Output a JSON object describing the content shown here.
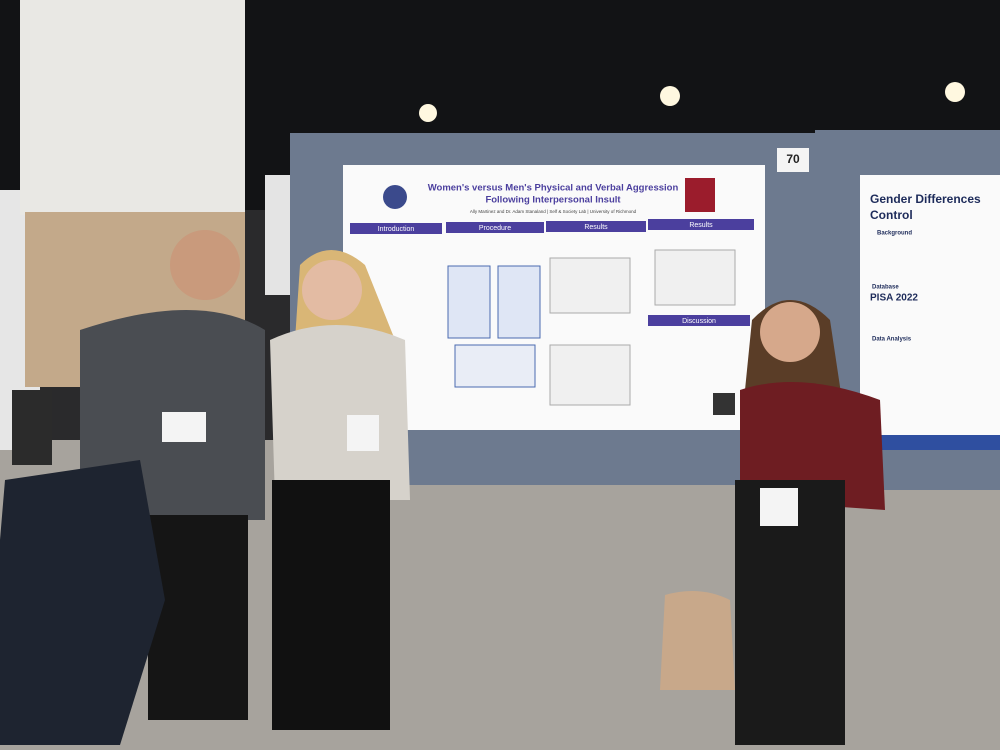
{
  "board_number": "70",
  "poster": {
    "title": "Women's versus Men's Physical and Verbal Aggression",
    "subtitle": "Following Interpersonal Insult",
    "authors": "Ally Martinez and Dr. Adam Stanaland | Self & Society Lab | University of Richmond",
    "sections": [
      "Introduction",
      "Procedure",
      "Results",
      "Results",
      "Discussion"
    ]
  },
  "right_poster": {
    "title": [
      "Gender Differences",
      "Control"
    ],
    "sections": [
      "Background",
      "Database",
      "Data Analysis"
    ],
    "database": "PISA 2022"
  }
}
